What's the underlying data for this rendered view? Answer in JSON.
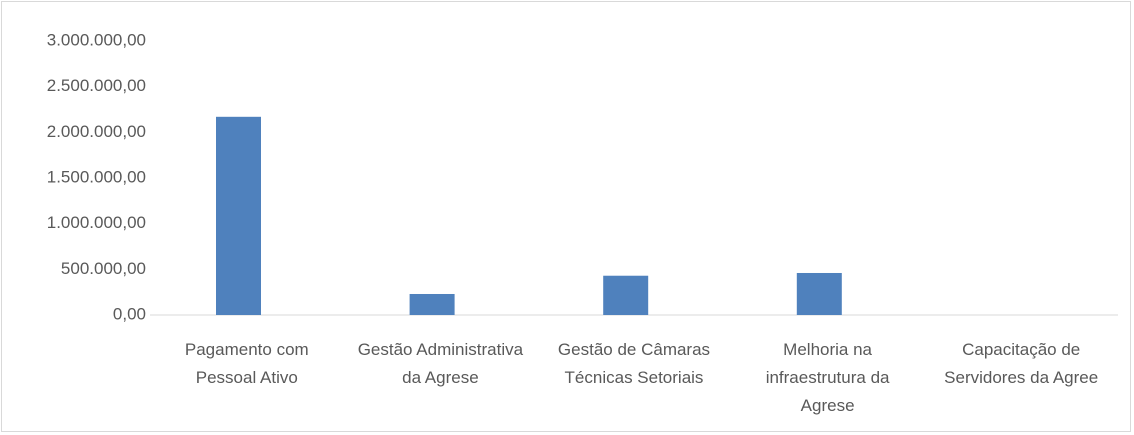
{
  "chart_data": {
    "type": "bar",
    "categories": [
      "Pagamento com Pessoal Ativo",
      "Gestão Administrativa da Agrese",
      "Gestão de Câmaras Técnicas Setoriais",
      "Melhoria na infraestrutura da Agrese",
      "Capacitação de Servidores da Agree"
    ],
    "values": [
      2170000,
      230000,
      430000,
      460000,
      0
    ],
    "color": "#4f81bd",
    "ylim": [
      0,
      3000000
    ],
    "yticks": [
      {
        "value": 0,
        "label": "0,00"
      },
      {
        "value": 500000,
        "label": "500.000,00"
      },
      {
        "value": 1000000,
        "label": "1.000.000,00"
      },
      {
        "value": 1500000,
        "label": "1.500.000,00"
      },
      {
        "value": 2000000,
        "label": "2.000.000,00"
      },
      {
        "value": 2500000,
        "label": "2.500.000,00"
      },
      {
        "value": 3000000,
        "label": "3.000.000,00"
      }
    ],
    "grid": false
  }
}
